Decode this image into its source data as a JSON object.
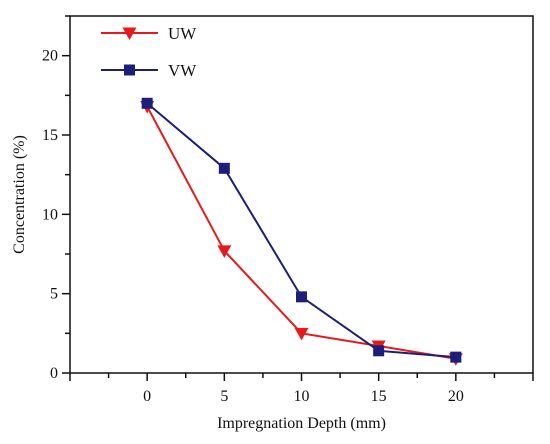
{
  "chart_data": {
    "type": "line",
    "title": "",
    "xlabel": "Impregnation Depth (mm)",
    "ylabel": "Concentration (%)",
    "xlim": [
      -5,
      25
    ],
    "ylim": [
      0,
      22.5
    ],
    "xticks": [
      0,
      5,
      10,
      15,
      20
    ],
    "yticks": [
      0,
      5,
      10,
      15,
      20
    ],
    "x": [
      0,
      5,
      10,
      15,
      20
    ],
    "series": [
      {
        "name": "UW",
        "values": [
          16.8,
          7.7,
          2.5,
          1.7,
          0.9
        ],
        "color": "#e8191c",
        "marker": "triangle-down"
      },
      {
        "name": "VW",
        "values": [
          17.0,
          12.9,
          4.8,
          1.4,
          1.0
        ],
        "color": "#1c1f7a",
        "marker": "square"
      }
    ],
    "legend_position": "top-left",
    "grid": false
  }
}
